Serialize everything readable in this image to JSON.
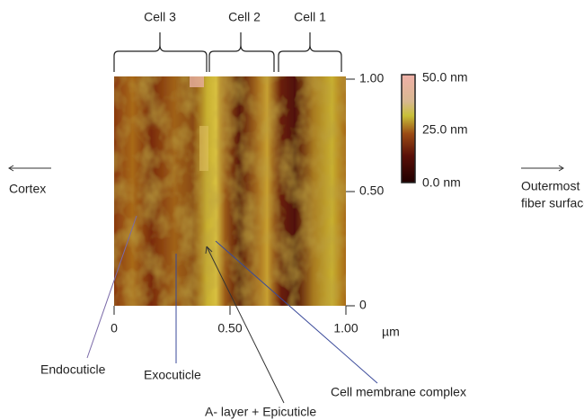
{
  "cells": [
    "Cell 3",
    "Cell 2",
    "Cell 1"
  ],
  "x_axis": {
    "ticks": [
      "0",
      "0.50",
      "1.00"
    ],
    "unit": "µm"
  },
  "y_axis": {
    "ticks": [
      "1.00",
      "0.50",
      "0"
    ]
  },
  "colorbar": {
    "labels": [
      "50.0 nm",
      "25.0 nm",
      "0.0 nm"
    ]
  },
  "directions": {
    "left": "Cortex",
    "right": [
      "Outermost",
      "fiber surface"
    ]
  },
  "annotations": [
    "Endocuticle",
    "Exocuticle",
    "A- layer + Epicuticle",
    "Cell membrane complex"
  ]
}
